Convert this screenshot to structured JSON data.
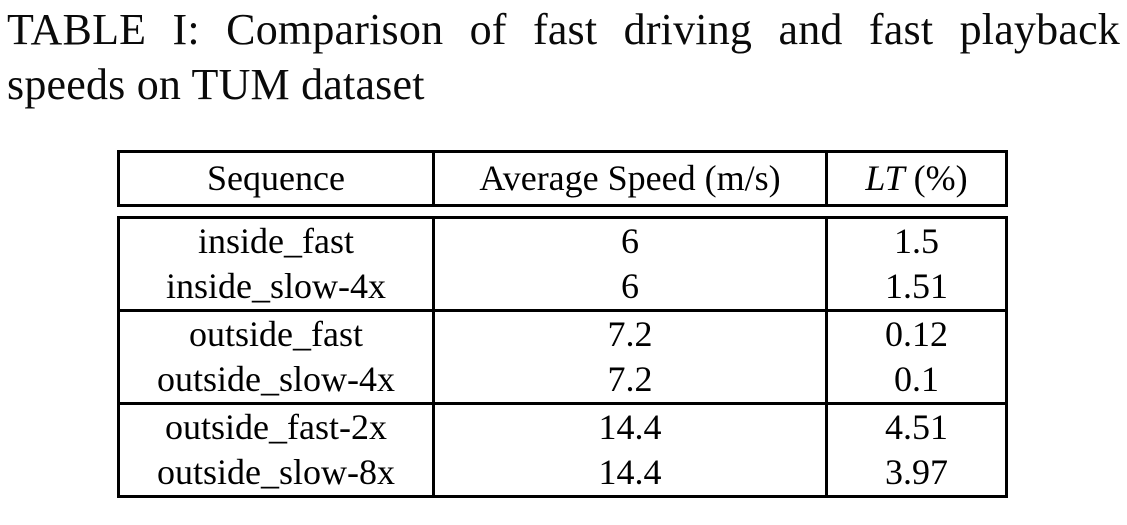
{
  "caption": {
    "text": "TABLE I: Comparison of fast driving and fast playback speeds on TUM dataset"
  },
  "table": {
    "headers": {
      "sequence": "Sequence",
      "speed": "Average Speed (m/s)",
      "lt_symbol": "LT",
      "lt_unit": " (%)"
    },
    "groups": [
      {
        "rows": [
          {
            "sequence": "inside_fast",
            "speed": "6",
            "lt": "1.5"
          },
          {
            "sequence": "inside_slow-4x",
            "speed": "6",
            "lt": "1.51"
          }
        ]
      },
      {
        "rows": [
          {
            "sequence": "outside_fast",
            "speed": "7.2",
            "lt": "0.12"
          },
          {
            "sequence": "outside_slow-4x",
            "speed": "7.2",
            "lt": "0.1"
          }
        ]
      },
      {
        "rows": [
          {
            "sequence": "outside_fast-2x",
            "speed": "14.4",
            "lt": "4.51"
          },
          {
            "sequence": "outside_slow-8x",
            "speed": "14.4",
            "lt": "3.97"
          }
        ]
      }
    ]
  },
  "colors": {
    "text": "#0a0a0a",
    "border": "#000000",
    "background": "#ffffff"
  }
}
